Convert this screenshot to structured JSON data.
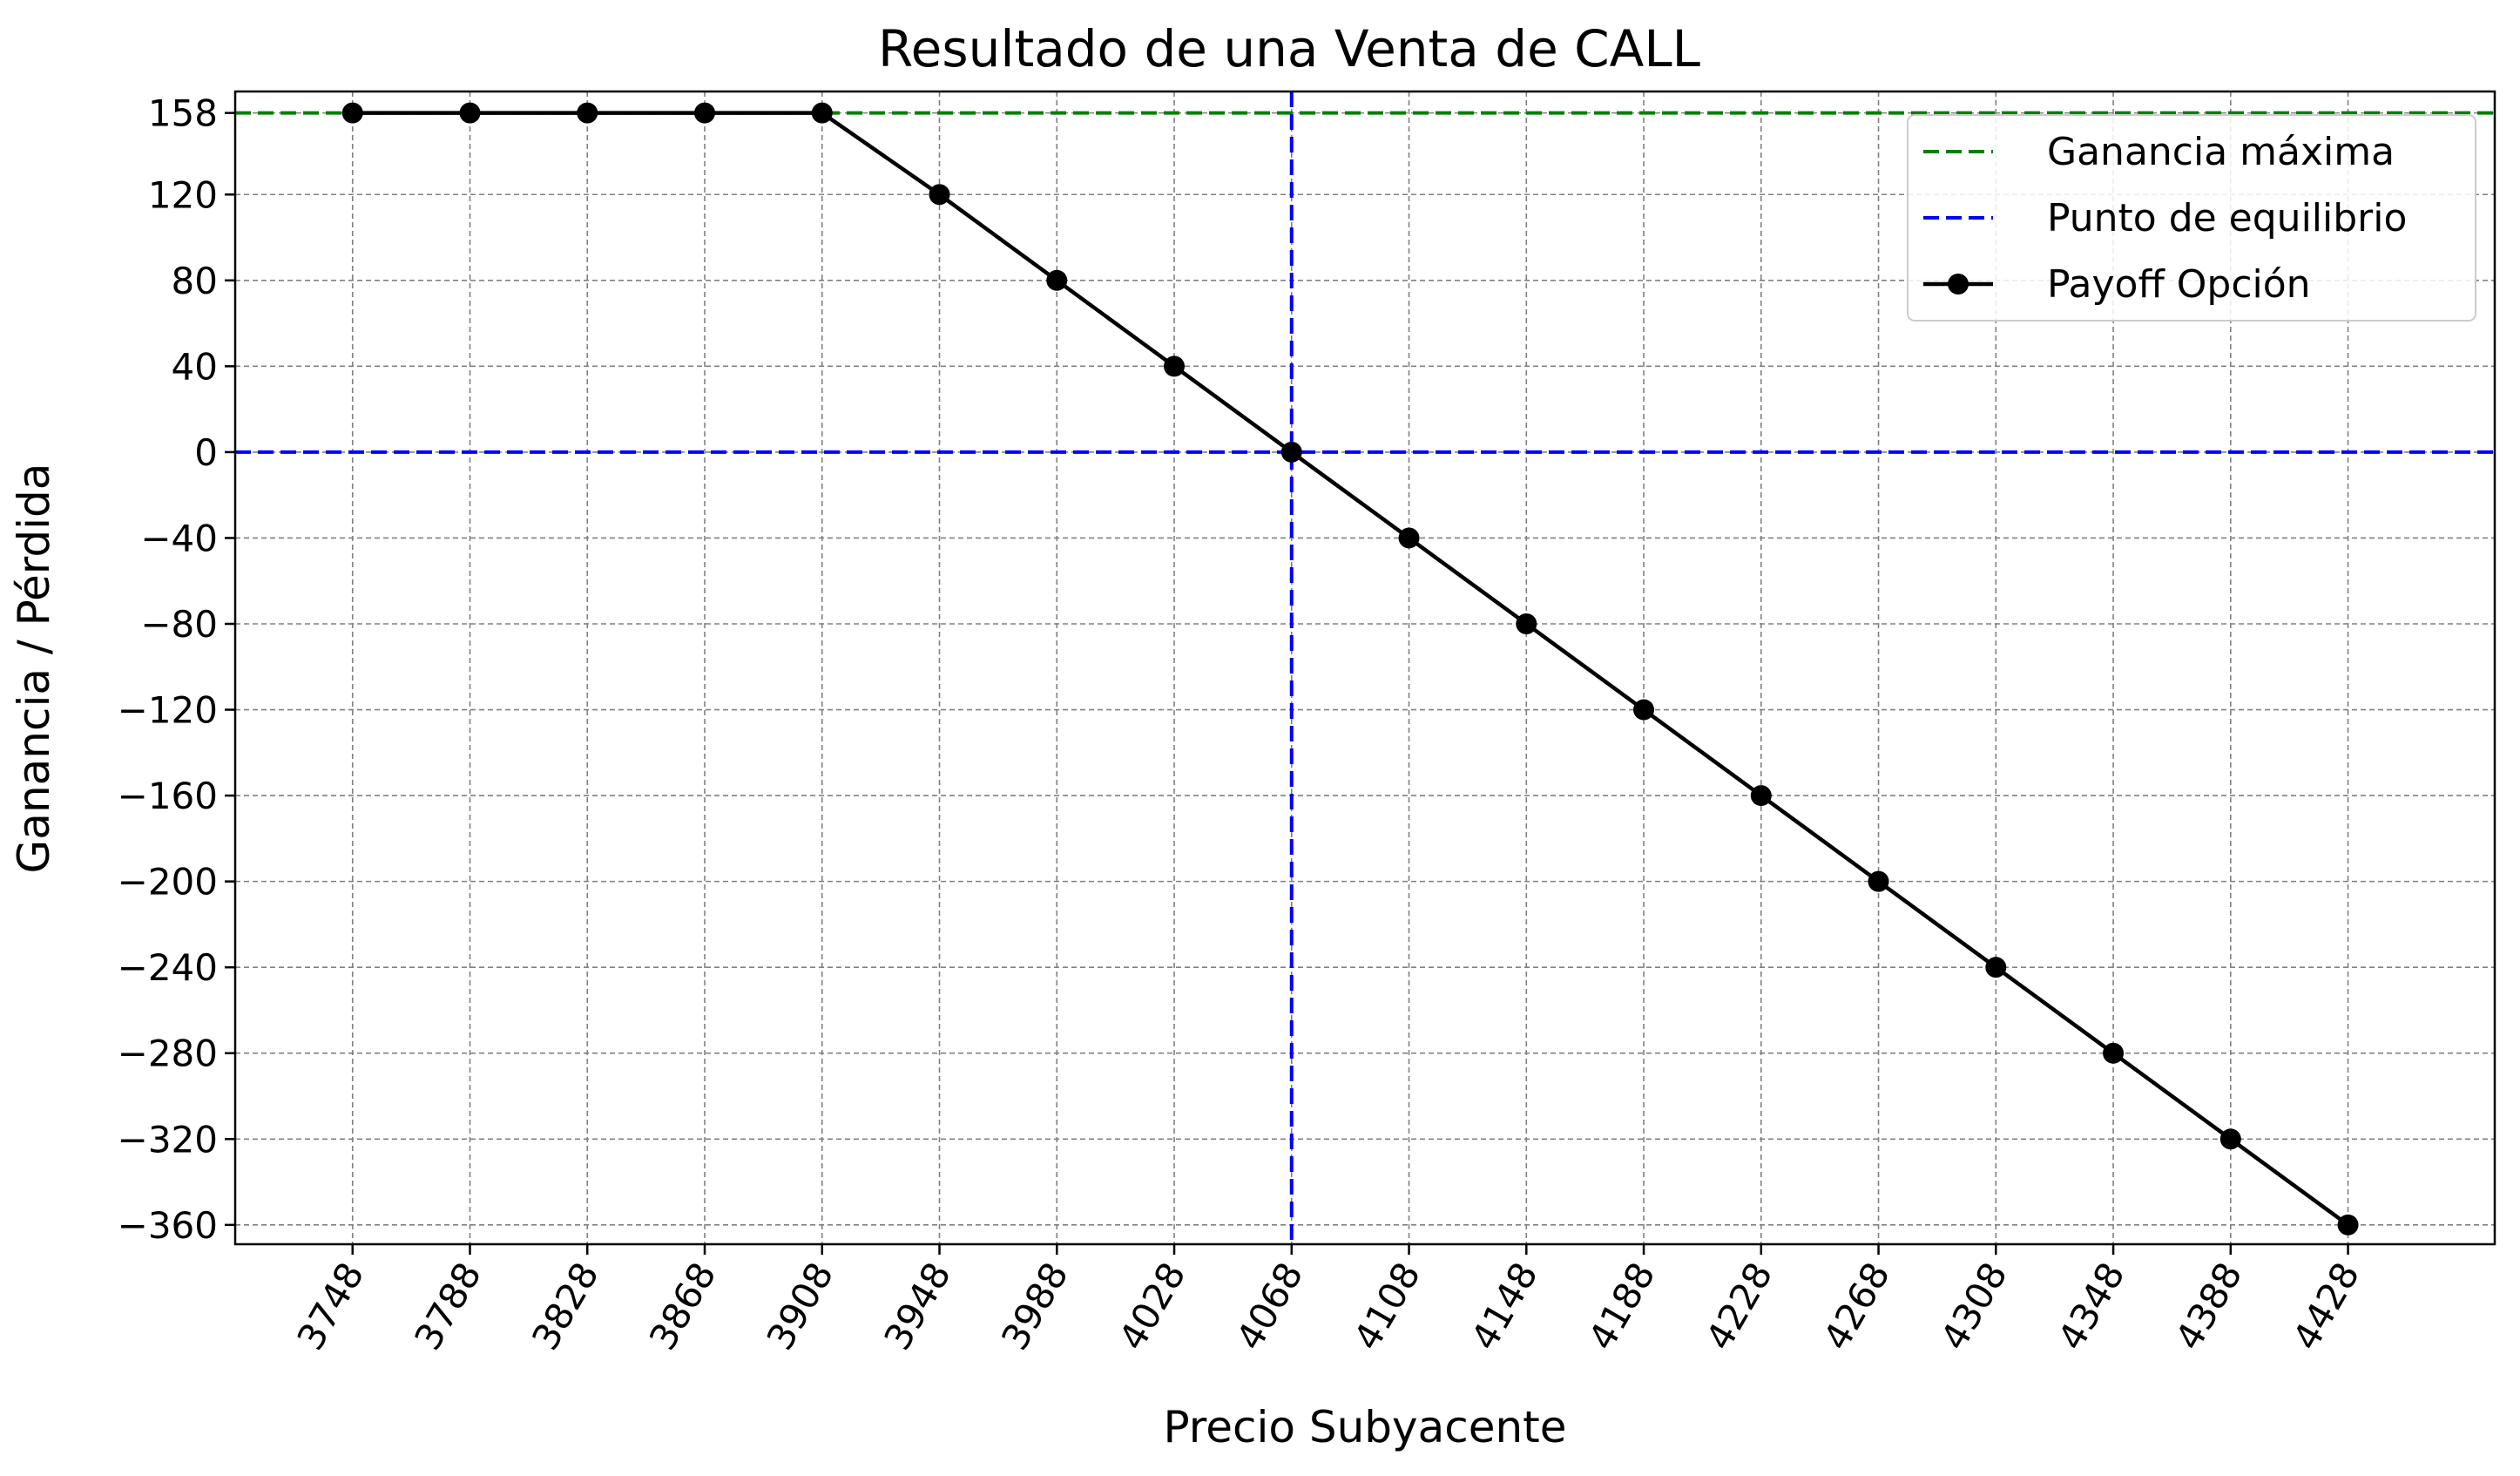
{
  "chart_data": {
    "type": "line",
    "title": "Resultado de una Venta de CALL",
    "xlabel": "Precio Subyacente",
    "ylabel": "Ganancia / Pérdida",
    "x_ticks": [
      "3748",
      "3788",
      "3828",
      "3868",
      "3908",
      "3948",
      "3988",
      "4028",
      "4068",
      "4108",
      "4148",
      "4188",
      "4228",
      "4268",
      "4308",
      "4348",
      "4388",
      "4428"
    ],
    "y_ticks": [
      158,
      120,
      80,
      40,
      0,
      -40,
      -80,
      -120,
      -160,
      -200,
      -240,
      -280,
      -320,
      -360
    ],
    "y_tick_labels": [
      "158",
      "120",
      "80",
      "40",
      "0",
      "−40",
      "−80",
      "−120",
      "−160",
      "−200",
      "−240",
      "−280",
      "−320",
      "−360"
    ],
    "xlim": [
      3708,
      4478
    ],
    "ylim": [
      -369,
      168
    ],
    "grid": true,
    "legend_position": "top-right",
    "series": [
      {
        "name": "Payoff Opción",
        "color": "#000000",
        "marker": "circle",
        "x": [
          3748,
          3788,
          3828,
          3868,
          3908,
          3948,
          3988,
          4028,
          4068,
          4108,
          4148,
          4188,
          4228,
          4268,
          4308,
          4348,
          4388,
          4428
        ],
        "y": [
          158,
          158,
          158,
          158,
          158,
          120,
          80,
          40,
          0,
          -40,
          -80,
          -120,
          -160,
          -200,
          -240,
          -280,
          -320,
          -360
        ]
      }
    ],
    "reference_lines": [
      {
        "name": "Ganancia máxima",
        "orientation": "horizontal",
        "value": 158,
        "color": "#008000",
        "style": "dashed"
      },
      {
        "name": "Punto de equilibrio",
        "orientation": "horizontal",
        "value": 0,
        "color": "#0000ff",
        "style": "dashed"
      },
      {
        "name": "Punto de equilibrio",
        "orientation": "vertical",
        "value": 4068,
        "color": "#0000ff",
        "style": "dashed"
      }
    ],
    "legend": [
      {
        "label": "Ganancia máxima",
        "color": "#008000",
        "style": "dashed"
      },
      {
        "label": "Punto de equilibrio",
        "color": "#0000ff",
        "style": "dashed"
      },
      {
        "label": "Payoff Opción",
        "color": "#000000",
        "style": "solid-marker"
      }
    ]
  }
}
